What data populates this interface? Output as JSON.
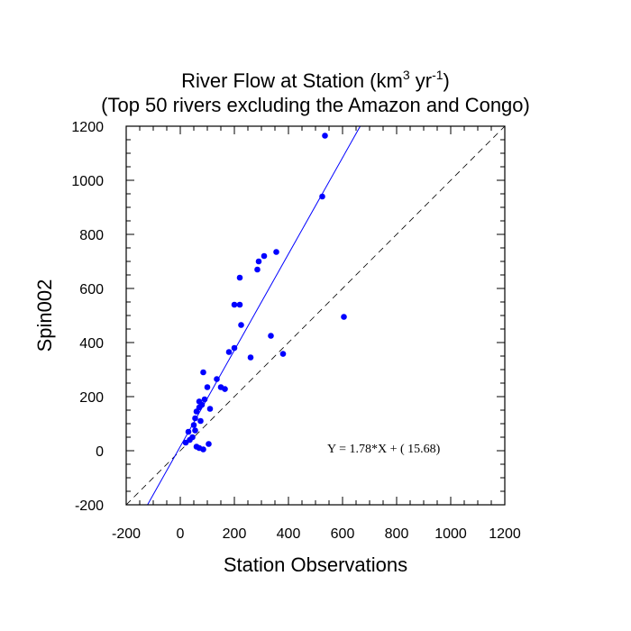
{
  "chart_data": {
    "type": "scatter",
    "title_line1_prefix": "River Flow at Station (km",
    "title_line1_sup1": "3",
    "title_line1_mid": " yr",
    "title_line1_sup2": "-1",
    "title_line1_suffix": ")",
    "title_line2": "(Top 50 rivers excluding the Amazon and Congo)",
    "xlabel": "Station Observations",
    "ylabel": "Spin002",
    "xlim": [
      -200,
      1200
    ],
    "ylim": [
      -200,
      1200
    ],
    "xticks": [
      "-200",
      "0",
      "200",
      "400",
      "600",
      "800",
      "1000",
      "1200"
    ],
    "yticks": [
      "-200",
      "0",
      "200",
      "400",
      "600",
      "800",
      "1000",
      "1200"
    ],
    "xtick_values": [
      -200,
      0,
      200,
      400,
      600,
      800,
      1000,
      1200
    ],
    "ytick_values": [
      -200,
      0,
      200,
      400,
      600,
      800,
      1000,
      1200
    ],
    "regression": {
      "slope": 1.78,
      "intercept": 15.68,
      "color": "#0000ff"
    },
    "equation_text": "Y =  1.78*X + (   15.68)",
    "one_to_one_line": true,
    "marker_color": "#0000ff",
    "points": [
      [
        535,
        1165
      ],
      [
        525,
        940
      ],
      [
        355,
        735
      ],
      [
        310,
        720
      ],
      [
        290,
        700
      ],
      [
        285,
        670
      ],
      [
        220,
        640
      ],
      [
        200,
        540
      ],
      [
        220,
        540
      ],
      [
        225,
        465
      ],
      [
        335,
        425
      ],
      [
        605,
        495
      ],
      [
        200,
        380
      ],
      [
        180,
        365
      ],
      [
        380,
        358
      ],
      [
        260,
        345
      ],
      [
        85,
        290
      ],
      [
        135,
        265
      ],
      [
        150,
        235
      ],
      [
        165,
        228
      ],
      [
        100,
        235
      ],
      [
        90,
        190
      ],
      [
        70,
        182
      ],
      [
        80,
        170
      ],
      [
        110,
        155
      ],
      [
        70,
        160
      ],
      [
        60,
        145
      ],
      [
        55,
        120
      ],
      [
        75,
        110
      ],
      [
        50,
        95
      ],
      [
        30,
        70
      ],
      [
        55,
        75
      ],
      [
        45,
        50
      ],
      [
        35,
        40
      ],
      [
        20,
        30
      ],
      [
        60,
        15
      ],
      [
        70,
        10
      ],
      [
        85,
        5
      ],
      [
        105,
        25
      ]
    ]
  }
}
